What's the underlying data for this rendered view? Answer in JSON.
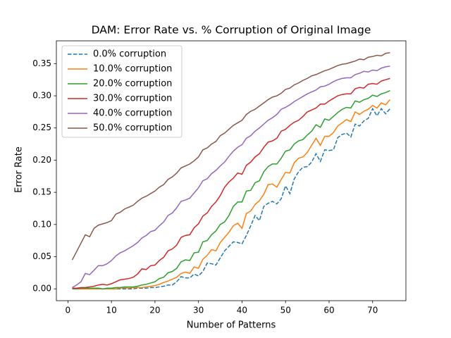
{
  "chart_data": {
    "type": "line",
    "title": "DAM: Error Rate vs. % Corruption of Original Image",
    "xlabel": "Number of Patterns",
    "ylabel": "Error Rate",
    "x": [
      1,
      2,
      3,
      4,
      5,
      6,
      7,
      8,
      9,
      10,
      11,
      12,
      13,
      14,
      15,
      16,
      17,
      18,
      19,
      20,
      21,
      22,
      23,
      24,
      25,
      26,
      27,
      28,
      29,
      30,
      31,
      32,
      33,
      34,
      35,
      36,
      37,
      38,
      39,
      40,
      41,
      42,
      43,
      44,
      45,
      46,
      47,
      48,
      49,
      50,
      51,
      52,
      53,
      54,
      55,
      56,
      57,
      58,
      59,
      60,
      61,
      62,
      63,
      64,
      65,
      66,
      67,
      68,
      69,
      70,
      71,
      72,
      73,
      74
    ],
    "series": [
      {
        "name": "0.0% corruption",
        "color": "#1f77b4",
        "dash": "dashed",
        "values": [
          0,
          0,
          0,
          0,
          0,
          0,
          0,
          0,
          0,
          0,
          0,
          0,
          0,
          0,
          0,
          0.001,
          0.001,
          0.001,
          0.002,
          0.002,
          0.003,
          0.004,
          0.006,
          0.006,
          0.011,
          0.019,
          0.017,
          0.017,
          0.023,
          0.02,
          0.027,
          0.04,
          0.039,
          0.037,
          0.048,
          0.059,
          0.066,
          0.073,
          0.072,
          0.07,
          0.083,
          0.098,
          0.114,
          0.106,
          0.128,
          0.133,
          0.136,
          0.132,
          0.14,
          0.16,
          0.148,
          0.171,
          0.182,
          0.189,
          0.19,
          0.197,
          0.21,
          0.198,
          0.216,
          0.215,
          0.216,
          0.235,
          0.24,
          0.242,
          0.236,
          0.256,
          0.253,
          0.261,
          0.265,
          0.28,
          0.269,
          0.28,
          0.272,
          0.28
        ]
      },
      {
        "name": "10.0% corruption",
        "color": "#ff7f0e",
        "dash": "solid",
        "values": [
          0,
          0,
          0,
          0,
          0,
          0,
          0,
          0,
          0,
          0,
          0,
          0.001,
          0.002,
          0.001,
          0.002,
          0.002,
          0.002,
          0.003,
          0.004,
          0.005,
          0.007,
          0.01,
          0.012,
          0.015,
          0.018,
          0.024,
          0.026,
          0.024,
          0.034,
          0.032,
          0.046,
          0.052,
          0.061,
          0.059,
          0.072,
          0.08,
          0.088,
          0.098,
          0.102,
          0.094,
          0.117,
          0.121,
          0.131,
          0.137,
          0.147,
          0.162,
          0.163,
          0.158,
          0.17,
          0.181,
          0.18,
          0.196,
          0.203,
          0.205,
          0.212,
          0.223,
          0.234,
          0.223,
          0.237,
          0.237,
          0.243,
          0.253,
          0.258,
          0.263,
          0.26,
          0.275,
          0.271,
          0.276,
          0.279,
          0.285,
          0.281,
          0.289,
          0.286,
          0.294
        ]
      },
      {
        "name": "20.0% corruption",
        "color": "#2ca02c",
        "dash": "solid",
        "values": [
          0,
          0,
          0.001,
          0.001,
          0.001,
          0.001,
          0.001,
          0,
          0.001,
          0.001,
          0.002,
          0.002,
          0.003,
          0.003,
          0.003,
          0.004,
          0.006,
          0.007,
          0.009,
          0.011,
          0.016,
          0.018,
          0.025,
          0.027,
          0.032,
          0.042,
          0.045,
          0.044,
          0.056,
          0.057,
          0.073,
          0.075,
          0.084,
          0.09,
          0.1,
          0.104,
          0.114,
          0.128,
          0.135,
          0.135,
          0.152,
          0.153,
          0.165,
          0.168,
          0.182,
          0.19,
          0.194,
          0.194,
          0.203,
          0.214,
          0.216,
          0.225,
          0.23,
          0.232,
          0.239,
          0.245,
          0.255,
          0.251,
          0.264,
          0.262,
          0.268,
          0.274,
          0.279,
          0.282,
          0.281,
          0.292,
          0.29,
          0.294,
          0.296,
          0.301,
          0.299,
          0.303,
          0.305,
          0.308
        ]
      },
      {
        "name": "30.0% corruption",
        "color": "#d62728",
        "dash": "solid",
        "values": [
          0.001,
          0.001,
          0.002,
          0.002,
          0.003,
          0.004,
          0.006,
          0.007,
          0.006,
          0.008,
          0.011,
          0.014,
          0.015,
          0.016,
          0.018,
          0.023,
          0.031,
          0.03,
          0.036,
          0.037,
          0.044,
          0.049,
          0.059,
          0.062,
          0.068,
          0.08,
          0.083,
          0.084,
          0.095,
          0.101,
          0.113,
          0.118,
          0.128,
          0.135,
          0.145,
          0.158,
          0.166,
          0.172,
          0.18,
          0.178,
          0.192,
          0.197,
          0.205,
          0.21,
          0.22,
          0.228,
          0.23,
          0.234,
          0.245,
          0.248,
          0.254,
          0.259,
          0.262,
          0.268,
          0.275,
          0.278,
          0.281,
          0.287,
          0.287,
          0.292,
          0.296,
          0.3,
          0.302,
          0.303,
          0.303,
          0.311,
          0.313,
          0.312,
          0.318,
          0.319,
          0.318,
          0.323,
          0.325,
          0.327
        ]
      },
      {
        "name": "40.0% corruption",
        "color": "#9467bd",
        "dash": "solid",
        "values": [
          0.002,
          0.006,
          0.011,
          0.024,
          0.022,
          0.029,
          0.036,
          0.036,
          0.039,
          0.044,
          0.051,
          0.056,
          0.059,
          0.063,
          0.067,
          0.072,
          0.079,
          0.083,
          0.089,
          0.091,
          0.098,
          0.104,
          0.114,
          0.118,
          0.126,
          0.136,
          0.138,
          0.141,
          0.149,
          0.157,
          0.168,
          0.171,
          0.179,
          0.184,
          0.191,
          0.197,
          0.206,
          0.214,
          0.22,
          0.224,
          0.234,
          0.238,
          0.245,
          0.25,
          0.256,
          0.262,
          0.266,
          0.271,
          0.279,
          0.282,
          0.286,
          0.291,
          0.295,
          0.299,
          0.303,
          0.306,
          0.309,
          0.314,
          0.315,
          0.318,
          0.322,
          0.325,
          0.327,
          0.328,
          0.328,
          0.333,
          0.335,
          0.338,
          0.337,
          0.34,
          0.339,
          0.343,
          0.345,
          0.346
        ]
      },
      {
        "name": "50.0% corruption",
        "color": "#8c564b",
        "dash": "solid",
        "values": [
          0.045,
          0.058,
          0.071,
          0.084,
          0.081,
          0.094,
          0.099,
          0.101,
          0.103,
          0.106,
          0.116,
          0.119,
          0.124,
          0.127,
          0.13,
          0.136,
          0.141,
          0.144,
          0.148,
          0.152,
          0.158,
          0.162,
          0.17,
          0.174,
          0.18,
          0.188,
          0.191,
          0.194,
          0.199,
          0.205,
          0.216,
          0.219,
          0.225,
          0.229,
          0.238,
          0.242,
          0.248,
          0.254,
          0.258,
          0.262,
          0.271,
          0.276,
          0.279,
          0.284,
          0.289,
          0.294,
          0.298,
          0.3,
          0.304,
          0.31,
          0.312,
          0.317,
          0.32,
          0.324,
          0.327,
          0.331,
          0.333,
          0.336,
          0.339,
          0.341,
          0.344,
          0.347,
          0.349,
          0.35,
          0.352,
          0.354,
          0.357,
          0.356,
          0.36,
          0.361,
          0.363,
          0.362,
          0.366,
          0.367
        ]
      }
    ],
    "xlim": [
      -2.65,
      77.65
    ],
    "xticks": [
      0,
      10,
      20,
      30,
      40,
      50,
      60,
      70
    ],
    "ylim": [
      -0.0184,
      0.3854
    ],
    "yticks": [
      {
        "value": 0,
        "label": "0.00"
      },
      {
        "value": 0.05,
        "label": "0.05"
      },
      {
        "value": 0.1,
        "label": "0.10"
      },
      {
        "value": 0.15,
        "label": "0.15"
      },
      {
        "value": 0.2,
        "label": "0.20"
      },
      {
        "value": 0.25,
        "label": "0.25"
      },
      {
        "value": 0.3,
        "label": "0.30"
      },
      {
        "value": 0.35,
        "label": "0.35"
      }
    ],
    "legend": "upper left",
    "grid": false
  }
}
